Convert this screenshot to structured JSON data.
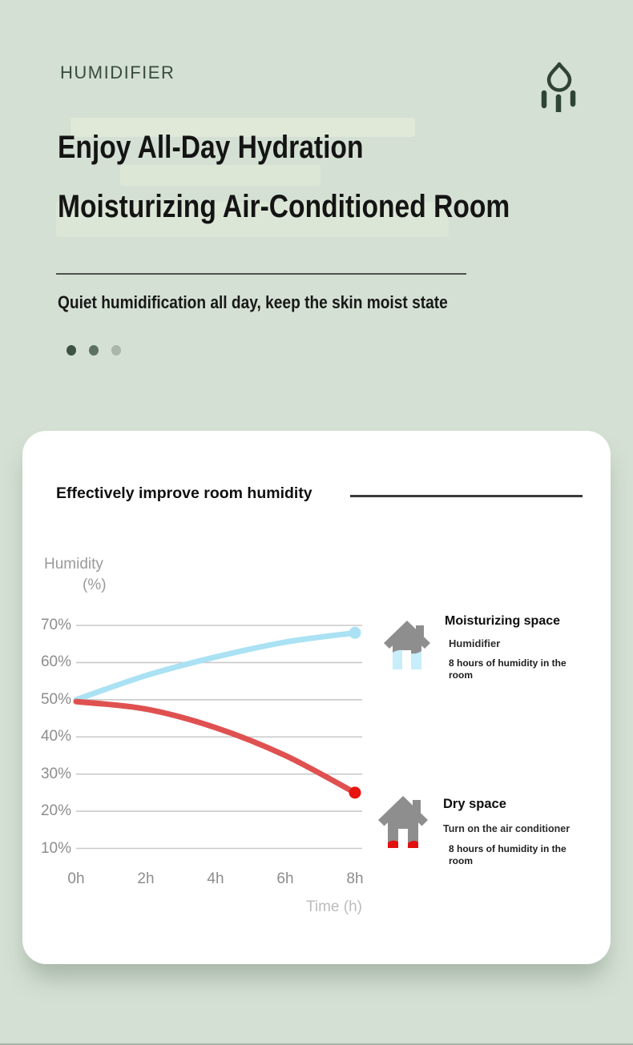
{
  "hero": {
    "brand": "HUMIDIFIER",
    "headline_line1": "Enjoy All-Day Hydration",
    "headline_line2": "Moisturizing Air-Conditioned Room",
    "subtitle": "Quiet humidification all day, keep the skin moist state",
    "pagination": {
      "dot_count": 3,
      "active_index": 0,
      "dot_colors": [
        "#3c5344",
        "#5d7163",
        "#aab6ac"
      ]
    }
  },
  "card": {
    "heading": "Effectively improve room humidity",
    "ylabel_line1": "Humidity",
    "ylabel_line2": "(%)",
    "legend": [
      {
        "title": "Moisturizing space",
        "subtitle": "Humidifier",
        "description": "8 hours of humidity in the room",
        "icon": "house-humid-icon",
        "accent_color": "#c8edfb"
      },
      {
        "title": "Dry space",
        "subtitle": "Turn on the air conditioner",
        "description": "8 hours of humidity in the room",
        "icon": "house-dry-icon",
        "accent_color": "#e31010"
      }
    ]
  },
  "chart_data": {
    "type": "line",
    "title": "Effectively improve room humidity",
    "xlabel": "Time (h)",
    "ylabel": "Humidity (%)",
    "x_ticks": [
      "0h",
      "2h",
      "4h",
      "6h",
      "8h"
    ],
    "y_ticks": [
      "70%",
      "60%",
      "50%",
      "40%",
      "30%",
      "20%",
      "10%"
    ],
    "xlim": [
      0,
      8
    ],
    "ylim": [
      10,
      70
    ],
    "grid": true,
    "legend_position": "right",
    "series": [
      {
        "name": "Moisturizing space",
        "color": "#aae2f4",
        "end_dot_color": "#aae2f4",
        "x": [
          0,
          2,
          4,
          6,
          8
        ],
        "values": [
          50,
          56.5,
          61.5,
          65.5,
          68
        ]
      },
      {
        "name": "Dry space",
        "color": "#df5150",
        "end_dot_color": "#e8150e",
        "x": [
          0,
          2,
          4,
          6,
          8
        ],
        "values": [
          49.5,
          47.5,
          42.5,
          35,
          25
        ]
      }
    ]
  },
  "colors": {
    "background": "#d4e0d3",
    "card": "#ffffff",
    "brand_green": "#364c3d",
    "headline_text": "#141414",
    "gridline": "#c9c9c9",
    "axis_text": "#8d8d8d",
    "house_gray": "#8e8e8e",
    "water_blue": "#c8edfb",
    "dry_red": "#e31010"
  }
}
